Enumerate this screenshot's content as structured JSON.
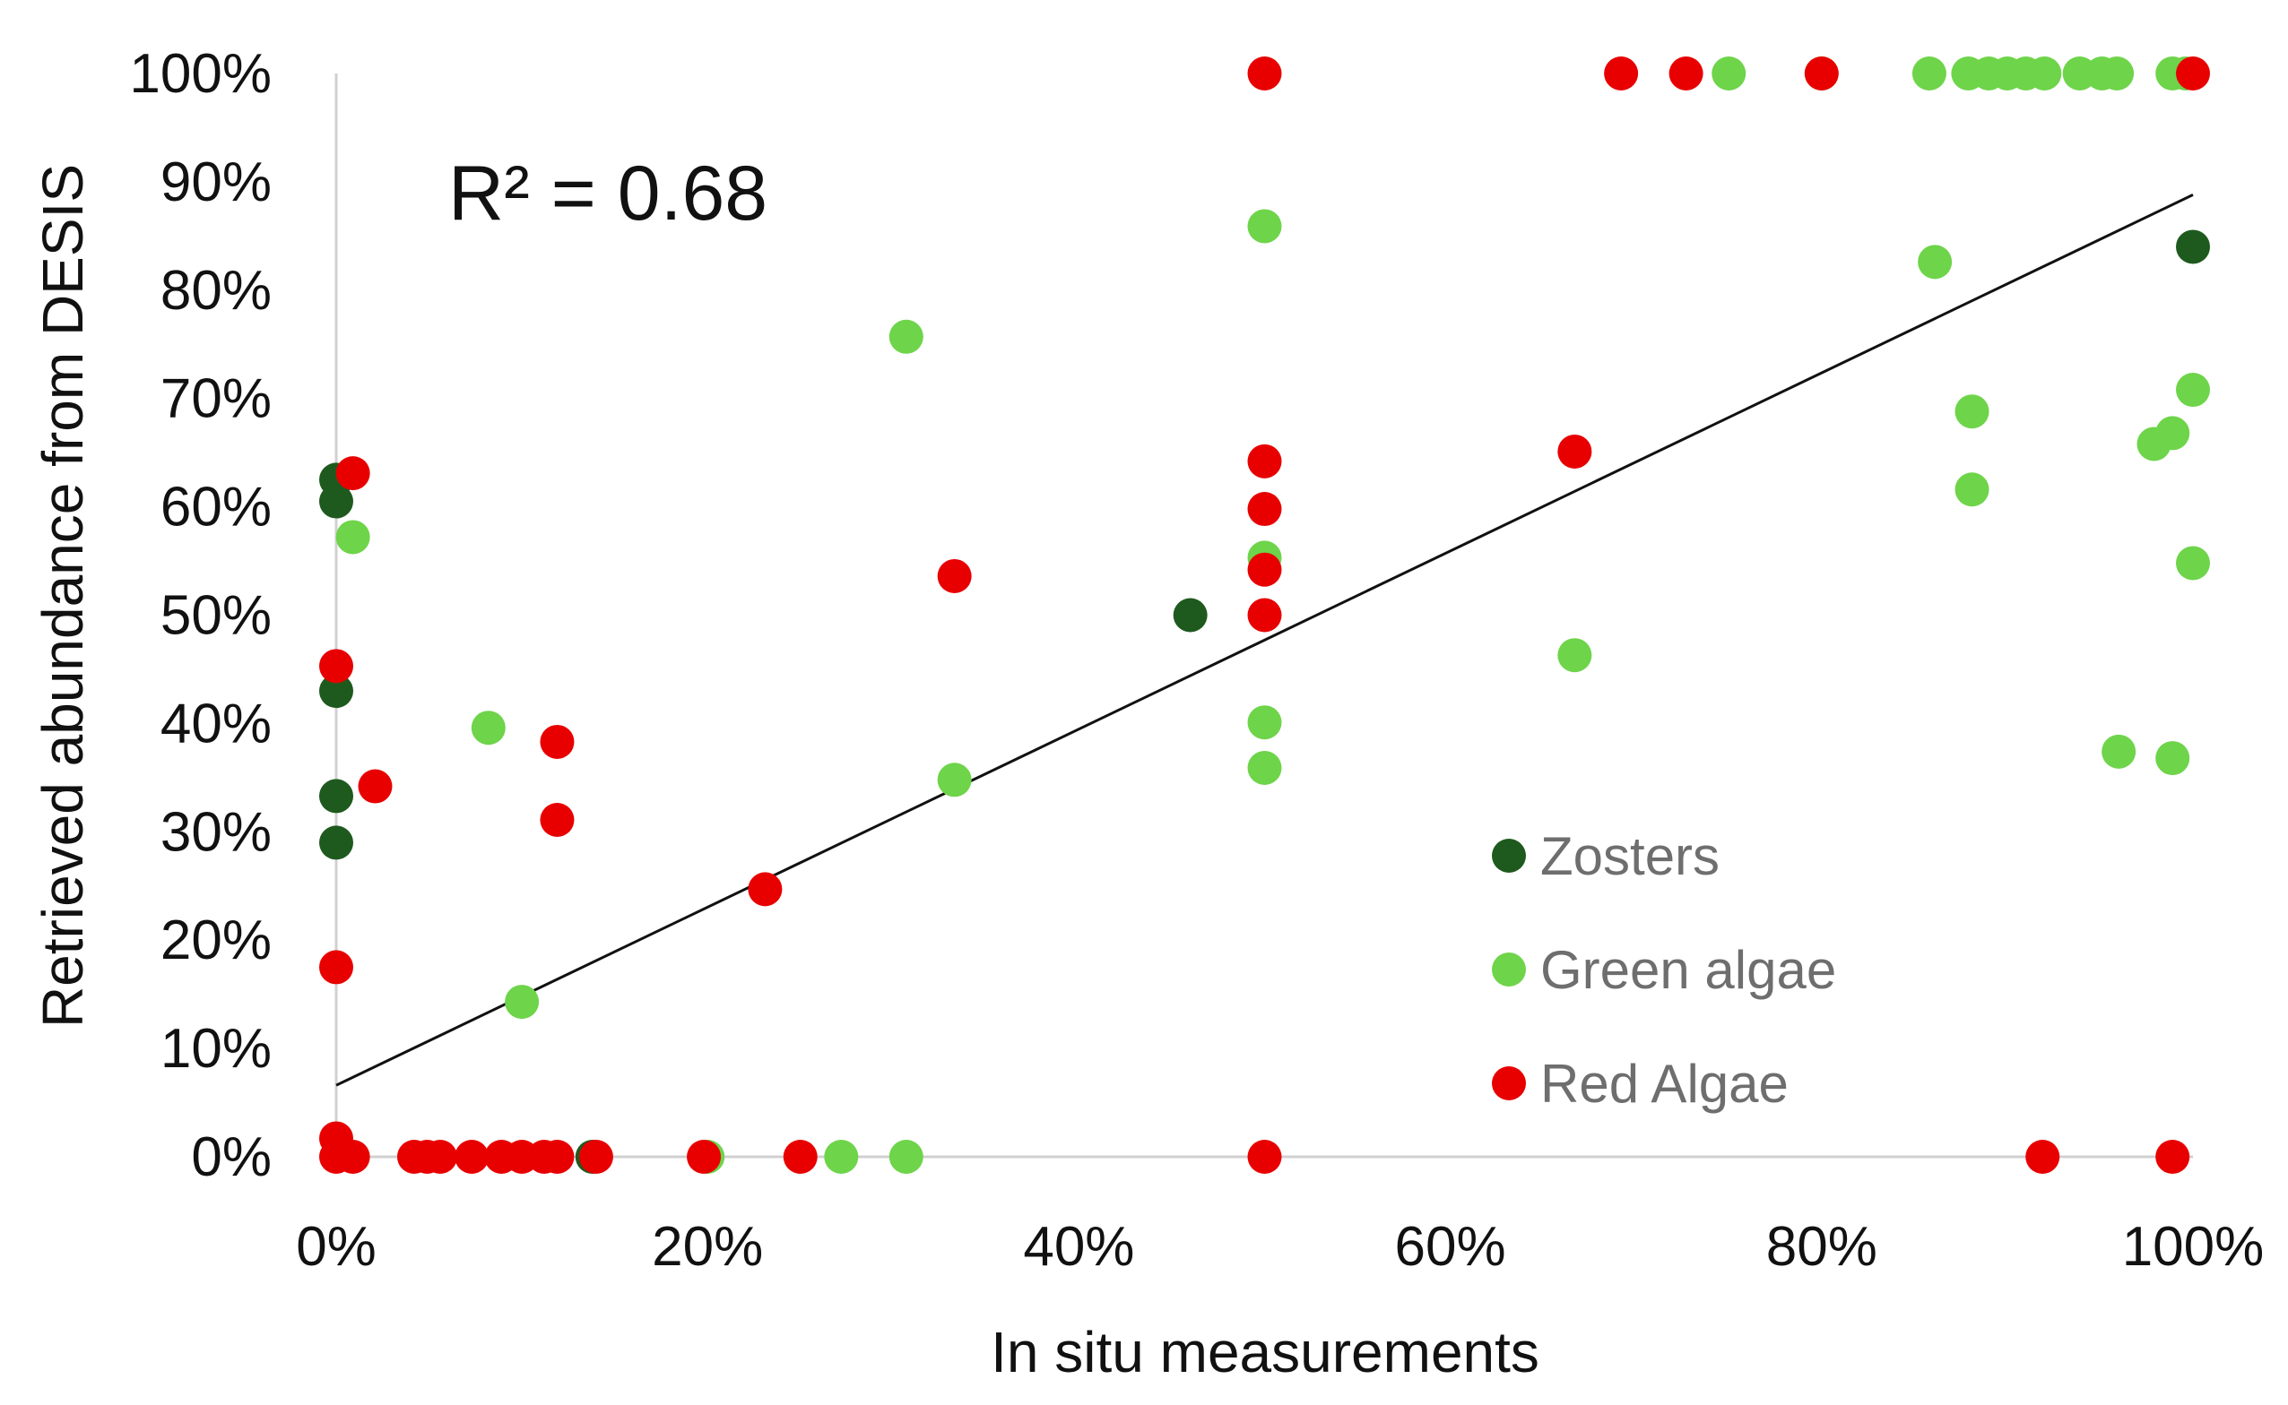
{
  "chart_data": {
    "type": "scatter",
    "title": "",
    "xlabel": "In situ measurements",
    "ylabel": "Retrieved abundance from DESIS",
    "xlim": [
      0,
      100
    ],
    "ylim": [
      0,
      100
    ],
    "x_ticks": [
      "0%",
      "20%",
      "40%",
      "60%",
      "80%",
      "100%"
    ],
    "y_ticks": [
      "0%",
      "10%",
      "20%",
      "30%",
      "40%",
      "50%",
      "60%",
      "70%",
      "80%",
      "90%",
      "100%"
    ],
    "annotation": "R² = 0.68",
    "grid": false,
    "legend_position": "bottom-right",
    "trendline": {
      "type": "linear",
      "x": [
        0,
        100
      ],
      "y": [
        6.6,
        88.8
      ]
    },
    "series": [
      {
        "name": "Zosters",
        "color": "#1e5a1e",
        "points": [
          [
            0,
            62.5
          ],
          [
            0,
            60.5
          ],
          [
            0,
            43
          ],
          [
            0,
            33.3
          ],
          [
            0,
            29
          ],
          [
            46,
            50
          ],
          [
            100,
            84
          ],
          [
            13.8,
            0
          ]
        ]
      },
      {
        "name": "Green algae",
        "color": "#6ed44a",
        "points": [
          [
            0.9,
            57.2
          ],
          [
            8.2,
            39.6
          ],
          [
            10,
            14.3
          ],
          [
            30.7,
            75.7
          ],
          [
            33.3,
            34.8
          ],
          [
            50,
            85.9
          ],
          [
            50,
            55.3
          ],
          [
            50,
            40.1
          ],
          [
            50,
            35.9
          ],
          [
            66.7,
            46.3
          ],
          [
            86.1,
            82.6
          ],
          [
            88.1,
            68.8
          ],
          [
            88.1,
            61.6
          ],
          [
            96,
            37.4
          ],
          [
            97.9,
            65.8
          ],
          [
            98.9,
            66.8
          ],
          [
            98.9,
            36.8
          ],
          [
            100,
            70.8
          ],
          [
            100,
            54.8
          ],
          [
            75,
            100
          ],
          [
            80,
            100
          ],
          [
            85.8,
            100
          ],
          [
            87.9,
            100
          ],
          [
            89,
            100
          ],
          [
            90,
            100
          ],
          [
            91,
            100
          ],
          [
            92,
            100
          ],
          [
            93.9,
            100
          ],
          [
            95.1,
            100
          ],
          [
            95.9,
            100
          ],
          [
            98.9,
            100
          ],
          [
            99.6,
            100
          ],
          [
            20,
            0
          ],
          [
            27.2,
            0
          ],
          [
            30.7,
            0
          ]
        ]
      },
      {
        "name": "Red Algae",
        "color": "#e80000",
        "points": [
          [
            0.9,
            63.1
          ],
          [
            0,
            45.3
          ],
          [
            2.1,
            34.2
          ],
          [
            0,
            17.5
          ],
          [
            0,
            1.7
          ],
          [
            0,
            0
          ],
          [
            0.9,
            0
          ],
          [
            4.2,
            0
          ],
          [
            4.9,
            0
          ],
          [
            5.6,
            0
          ],
          [
            7.3,
            0
          ],
          [
            8.9,
            0
          ],
          [
            10,
            0
          ],
          [
            11.2,
            0
          ],
          [
            11.9,
            0
          ],
          [
            14,
            0
          ],
          [
            19.8,
            0
          ],
          [
            25,
            0
          ],
          [
            50,
            0
          ],
          [
            91.9,
            0
          ],
          [
            98.9,
            0
          ],
          [
            11.9,
            38.3
          ],
          [
            11.9,
            31.1
          ],
          [
            23.1,
            24.7
          ],
          [
            33.3,
            53.6
          ],
          [
            50,
            64.2
          ],
          [
            50,
            59.8
          ],
          [
            50,
            54.2
          ],
          [
            50,
            50
          ],
          [
            50,
            100
          ],
          [
            66.7,
            65.1
          ],
          [
            69.2,
            100
          ],
          [
            72.7,
            100
          ],
          [
            80,
            100
          ],
          [
            100,
            100
          ]
        ]
      }
    ]
  }
}
